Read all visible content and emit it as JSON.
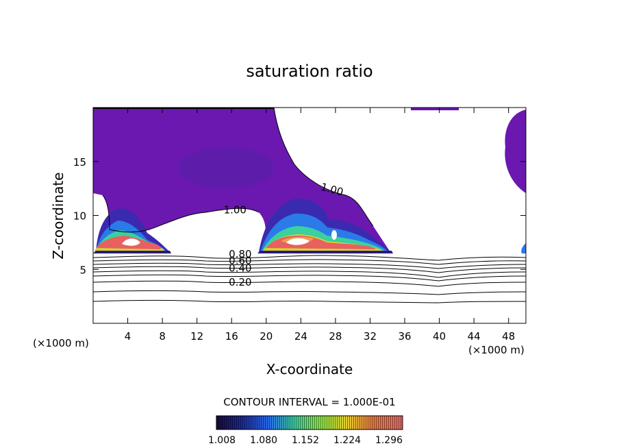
{
  "chart_data": {
    "type": "contour",
    "title": "saturation ratio",
    "xlabel": "X-coordinate",
    "ylabel": "Z-coordinate",
    "x_unit": "(×1000 m)",
    "y_unit": "(×1000 m)",
    "xlim": [
      0,
      50
    ],
    "ylim": [
      0,
      20
    ],
    "x_ticks": [
      4,
      8,
      12,
      16,
      20,
      24,
      28,
      32,
      36,
      40,
      44,
      48
    ],
    "y_ticks": [
      5,
      10,
      15
    ],
    "contour_line_labels": [
      {
        "text": "1.00",
        "x": 27.5,
        "z": 12.1
      },
      {
        "text": "1.00",
        "x": 16.4,
        "z": 10.2
      },
      {
        "text": "0.80",
        "x": 17.0,
        "z": 6.1
      },
      {
        "text": "0.60",
        "x": 17.0,
        "z": 5.5
      },
      {
        "text": "0.40",
        "x": 17.0,
        "z": 4.8
      },
      {
        "text": "0.20",
        "x": 17.0,
        "z": 3.5
      }
    ],
    "contour_interval_text": "CONTOUR INTERVAL = 1.000E-01",
    "colorbar": {
      "ticks": [
        "1.008",
        "1.080",
        "1.152",
        "1.224",
        "1.296"
      ],
      "colors": [
        "#1a0a3a",
        "#1a2aa0",
        "#2a6ae8",
        "#3ad0a0",
        "#8ae840",
        "#e8d030",
        "#e87a40",
        "#e86a6a"
      ]
    },
    "colors": {
      "supersaturated_fill": "#6a18b0",
      "supersaturated_dark": "#5220a0",
      "core_red": "#e86060",
      "core_orange": "#f0a050"
    }
  }
}
